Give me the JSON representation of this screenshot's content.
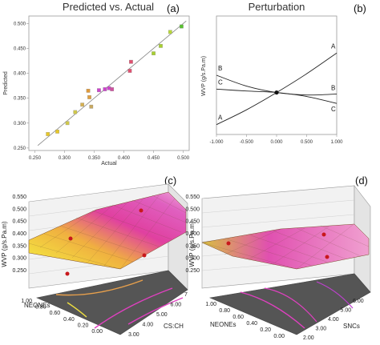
{
  "chart_data": [
    {
      "type": "scatter",
      "panel_label": "(a)",
      "title": "Predicted vs. Actual",
      "xlabel": "Actual",
      "ylabel": "Predicted",
      "xlim": [
        0.24,
        0.51
      ],
      "ylim": [
        0.245,
        0.515
      ],
      "xticks": [
        "0.250",
        "0.300",
        "0.350",
        "0.400",
        "0.450",
        "0.500"
      ],
      "yticks": [
        "0.250",
        "0.300",
        "0.350",
        "0.400",
        "0.450",
        "0.500"
      ],
      "grid": false,
      "diagonal_line": true,
      "points": [
        {
          "x": 0.272,
          "y": 0.278,
          "color": "#e8c828"
        },
        {
          "x": 0.288,
          "y": 0.283,
          "color": "#e8c828"
        },
        {
          "x": 0.305,
          "y": 0.3,
          "color": "#d0c84a"
        },
        {
          "x": 0.318,
          "y": 0.322,
          "color": "#d0c84a"
        },
        {
          "x": 0.33,
          "y": 0.337,
          "color": "#d6b050"
        },
        {
          "x": 0.34,
          "y": 0.365,
          "color": "#e09a3a"
        },
        {
          "x": 0.342,
          "y": 0.352,
          "color": "#e0a040"
        },
        {
          "x": 0.345,
          "y": 0.333,
          "color": "#c8a860"
        },
        {
          "x": 0.358,
          "y": 0.366,
          "color": "#cc44cc"
        },
        {
          "x": 0.368,
          "y": 0.368,
          "color": "#cc44cc"
        },
        {
          "x": 0.375,
          "y": 0.37,
          "color": "#cc44cc"
        },
        {
          "x": 0.38,
          "y": 0.368,
          "color": "#d050a0"
        },
        {
          "x": 0.41,
          "y": 0.405,
          "color": "#e05070"
        },
        {
          "x": 0.412,
          "y": 0.423,
          "color": "#e05070"
        },
        {
          "x": 0.45,
          "y": 0.44,
          "color": "#a8d030"
        },
        {
          "x": 0.462,
          "y": 0.455,
          "color": "#a8d030"
        },
        {
          "x": 0.478,
          "y": 0.483,
          "color": "#b8d838"
        },
        {
          "x": 0.497,
          "y": 0.494,
          "color": "#58c030"
        }
      ]
    },
    {
      "type": "line",
      "panel_label": "(b)",
      "title": "Perturbation",
      "ylabel": "WVP (g/s.Pa.m)",
      "xlim": [
        -1,
        1
      ],
      "ylim": [
        0.28,
        0.52
      ],
      "xticks": [
        "-1.000",
        "-0.500",
        "0.000",
        "0.500",
        "1.000"
      ],
      "center_value": 0.365,
      "series": [
        {
          "label": "A",
          "x": [
            -1,
            -0.5,
            0,
            0.5,
            1
          ],
          "y": [
            0.3,
            0.33,
            0.365,
            0.403,
            0.445
          ]
        },
        {
          "label": "B",
          "x": [
            -1,
            -0.5,
            0,
            0.5,
            1
          ],
          "y": [
            0.4,
            0.378,
            0.365,
            0.36,
            0.362
          ]
        },
        {
          "label": "C",
          "x": [
            -1,
            -0.5,
            0,
            0.5,
            1
          ],
          "y": [
            0.372,
            0.368,
            0.365,
            0.357,
            0.343
          ]
        }
      ]
    },
    {
      "type": "surface",
      "panel_label": "(c)",
      "zlabel": "WVP (g/s.Pa.m)",
      "xlabel": "NEONEs",
      "ylabel": "CS:CH",
      "zticks": [
        "0.250",
        "0.300",
        "0.350",
        "0.400",
        "0.450",
        "0.500",
        "0.550"
      ],
      "xticks": [
        "1.00",
        "0.80",
        "0.60",
        "0.40",
        "0.20",
        "0.00"
      ],
      "yticks": [
        "3.00",
        "4.00",
        "5.00",
        "6.00",
        "7"
      ],
      "zlim": [
        0.25,
        0.55
      ]
    },
    {
      "type": "surface",
      "panel_label": "(d)",
      "zlabel": "WVP (g/s.Pa.m)",
      "xlabel": "NEONEs",
      "ylabel": "SNCs",
      "zticks": [
        "0.250",
        "0.300",
        "0.350",
        "0.400",
        "0.450",
        "0.500",
        "0.550"
      ],
      "xticks": [
        "1.00",
        "0.80",
        "0.60",
        "0.40",
        "0.20",
        "0.00"
      ],
      "yticks": [
        "2.00",
        "3.00",
        "4.00",
        "5.00",
        "6.00"
      ],
      "zlim": [
        0.25,
        0.55
      ]
    }
  ]
}
